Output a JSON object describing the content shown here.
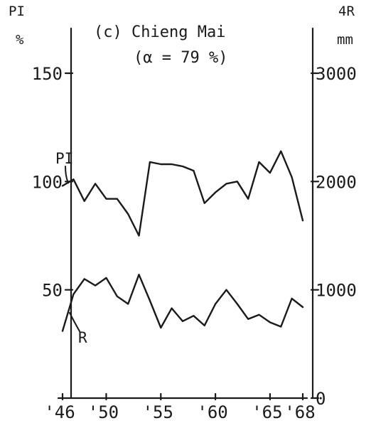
{
  "chart_data": {
    "type": "line",
    "title": "(c) Chieng Mai",
    "subtitle": "(α = 79 %)",
    "left_axis": {
      "label": "PI",
      "unit": "%",
      "ticks": [
        50,
        100,
        150
      ],
      "tick_labels": [
        "50",
        "100",
        "150"
      ],
      "range": [
        0,
        150
      ]
    },
    "right_axis": {
      "label": "4R",
      "unit": "mm",
      "ticks": [
        0,
        1000,
        2000,
        3000
      ],
      "tick_labels": [
        "0",
        "1000",
        "2000",
        "3000"
      ],
      "range": [
        0,
        3000
      ]
    },
    "x_axis": {
      "ticks": [
        1946,
        1950,
        1955,
        1960,
        1965,
        1968
      ],
      "tick_labels": [
        "'46",
        "'50",
        "'55",
        "'60",
        "'65",
        "'68"
      ],
      "range": [
        1946,
        1968
      ]
    },
    "grid": false,
    "legend": "none",
    "series": [
      {
        "name": "PI",
        "axis": "left",
        "x": [
          1946,
          1947,
          1948,
          1949,
          1950,
          1951,
          1952,
          1953,
          1954,
          1955,
          1956,
          1957,
          1958,
          1959,
          1960,
          1961,
          1962,
          1963,
          1964,
          1965,
          1966,
          1967,
          1968
        ],
        "values": [
          98,
          101,
          91,
          99,
          92,
          92,
          85,
          75,
          109,
          108,
          108,
          107,
          105,
          90,
          95,
          99,
          100,
          92,
          109,
          104,
          114,
          102,
          82
        ]
      },
      {
        "name": "R",
        "axis": "right",
        "x": [
          1946,
          1947,
          1948,
          1949,
          1950,
          1951,
          1952,
          1953,
          1954,
          1955,
          1956,
          1957,
          1958,
          1959,
          1960,
          1961,
          1962,
          1963,
          1964,
          1965,
          1966,
          1967,
          1968
        ],
        "values": [
          620,
          960,
          1100,
          1040,
          1110,
          940,
          870,
          1140,
          900,
          650,
          830,
          710,
          760,
          670,
          870,
          1000,
          870,
          730,
          770,
          700,
          660,
          920,
          840
        ]
      }
    ]
  },
  "colors": {
    "ink": "#1a1a1a",
    "background": "#ffffff"
  }
}
